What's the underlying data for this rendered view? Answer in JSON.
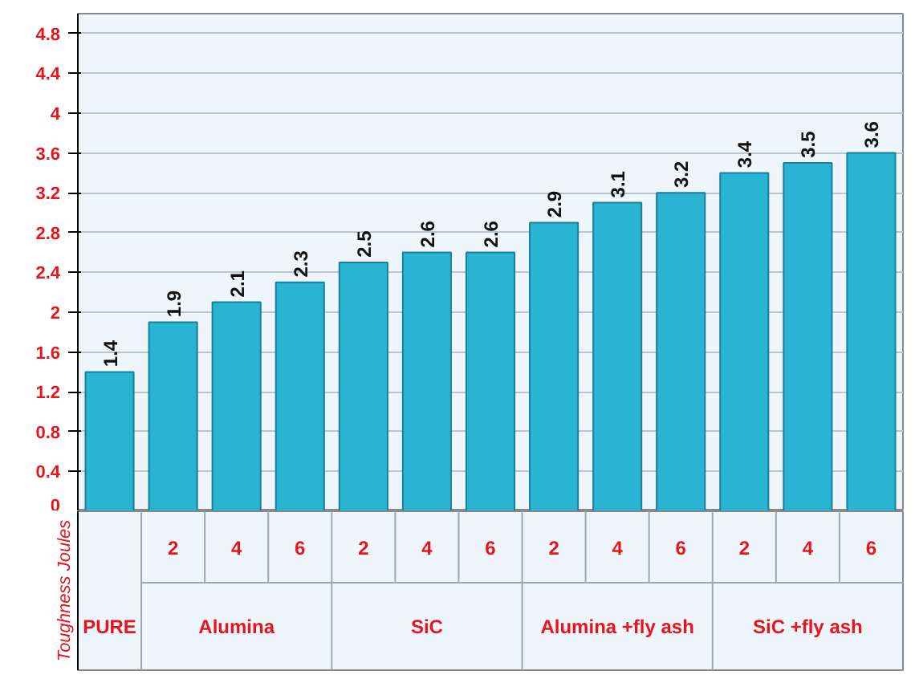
{
  "chart_data": {
    "type": "bar",
    "ylabel": "Toughness Joules",
    "categories": [
      null,
      "2",
      "4",
      "6",
      "2",
      "4",
      "6",
      "2",
      "4",
      "6",
      "2",
      "4",
      "6"
    ],
    "values": [
      1.4,
      1.9,
      2.1,
      2.3,
      2.5,
      2.6,
      2.6,
      2.9,
      3.1,
      3.2,
      3.4,
      3.5,
      3.6
    ],
    "color": "#2ab4d4",
    "data_labels": true,
    "annotations": [
      "PURE",
      "Alumina",
      "SiC",
      "Alumina +fly ash",
      "SiC +fly ash"
    ],
    "ylim": [
      0,
      5.0
    ],
    "yticks": [
      0,
      0.4,
      0.8,
      1.2,
      1.6,
      2,
      2.4,
      2.8,
      3.2,
      3.6,
      4,
      4.4,
      4.8
    ],
    "grid": "y"
  }
}
